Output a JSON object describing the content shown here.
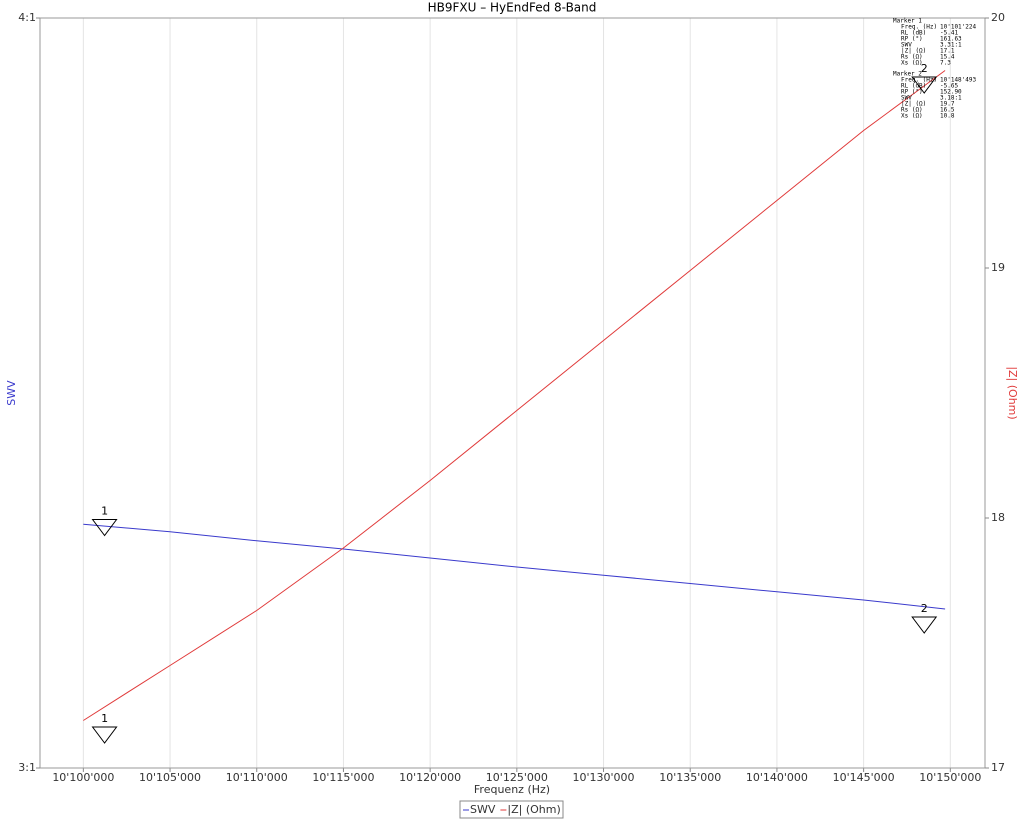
{
  "chart_data": {
    "type": "line",
    "title": "HB9FXU – HyEndFed 8-Band",
    "xlabel": "Frequenz (Hz)",
    "ylabel": "SWV",
    "y2label": "|Z| (Ohm)",
    "x": [
      10100000,
      10105000,
      10110000,
      10115000,
      10120000,
      10125000,
      10130000,
      10135000,
      10140000,
      10145000,
      10149700
    ],
    "series": [
      {
        "name": "SWV",
        "color": "#3a3acc",
        "values": [
          3.325,
          3.315,
          3.303,
          3.292,
          3.28,
          3.268,
          3.257,
          3.246,
          3.235,
          3.224,
          3.212
        ]
      },
      {
        "name": "|Z| (Ohm)",
        "color": "#e03a3a",
        "axis": "y2",
        "values": [
          17.19,
          17.41,
          17.63,
          17.88,
          18.15,
          18.43,
          18.71,
          18.99,
          19.27,
          19.55,
          19.79
        ]
      }
    ],
    "xlim": [
      10097500,
      10152000
    ],
    "xticks": [
      {
        "value": 10100000,
        "label": "10'100'000"
      },
      {
        "value": 10105000,
        "label": "10'105'000"
      },
      {
        "value": 10110000,
        "label": "10'110'000"
      },
      {
        "value": 10115000,
        "label": "10'115'000"
      },
      {
        "value": 10120000,
        "label": "10'120'000"
      },
      {
        "value": 10125000,
        "label": "10'125'000"
      },
      {
        "value": 10130000,
        "label": "10'130'000"
      },
      {
        "value": 10135000,
        "label": "10'135'000"
      },
      {
        "value": 10140000,
        "label": "10'140'000"
      },
      {
        "value": 10145000,
        "label": "10'145'000"
      },
      {
        "value": 10150000,
        "label": "10'150'000"
      }
    ],
    "ylim": [
      3,
      4
    ],
    "yticks": [
      {
        "value": 3,
        "label": "3:1"
      },
      {
        "value": 4,
        "label": "4:1"
      }
    ],
    "y2lim": [
      17,
      20
    ],
    "y2ticks": [
      17,
      18,
      19,
      20
    ],
    "grid": true,
    "markers": [
      {
        "label": "1",
        "x": 10101224,
        "swv": 3.31,
        "z": 17.1,
        "title": "Marker 1",
        "rows": [
          [
            "Freq. (Hz)",
            "10'101'224"
          ],
          [
            "RL (dB)",
            "-5.41"
          ],
          [
            "RP (°)",
            "161.63"
          ],
          [
            "SWV",
            "3.31:1"
          ],
          [
            "|Z| (Ω)",
            "17.1"
          ],
          [
            "Rs (Ω)",
            "15.4"
          ],
          [
            "Xs (Ω)",
            "7.3"
          ]
        ]
      },
      {
        "label": "2",
        "x": 10148493,
        "swv": 3.18,
        "z": 19.7,
        "title": "Marker 2",
        "rows": [
          [
            "Freq. (Hz)",
            "10'148'493"
          ],
          [
            "RL (dB)",
            "-5.65"
          ],
          [
            "RP (°)",
            "152.90"
          ],
          [
            "SWV",
            "3.18:1"
          ],
          [
            "|Z| (Ω)",
            "19.7"
          ],
          [
            "Rs (Ω)",
            "16.5"
          ],
          [
            "Xs (Ω)",
            "10.8"
          ]
        ]
      }
    ]
  }
}
